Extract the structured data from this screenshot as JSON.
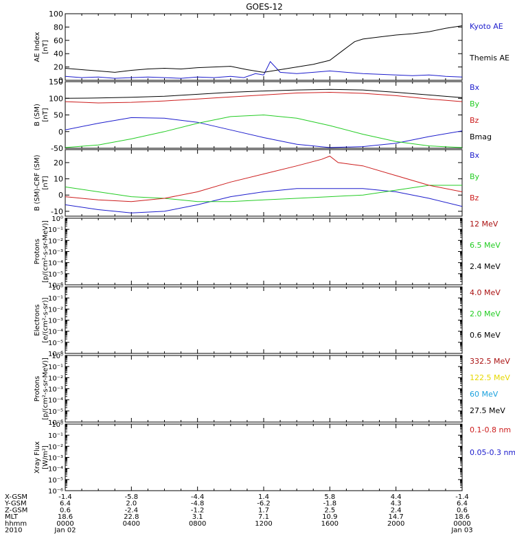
{
  "title": "GOES-12",
  "time_axis": {
    "xlim": [
      0,
      24
    ],
    "major_ticks": [
      0,
      4,
      8,
      12,
      16,
      20,
      24
    ]
  },
  "footer": {
    "rows": [
      {
        "label": "X-GSM",
        "values": [
          "-1.4",
          "-5.8",
          "-4.4",
          "1.4",
          "5.8",
          "4.4",
          "-1.4"
        ]
      },
      {
        "label": "Y-GSM",
        "values": [
          "6.4",
          "2.0",
          "-4.8",
          "-6.2",
          "-1.8",
          "4.3",
          "6.4"
        ]
      },
      {
        "label": "Z-GSM",
        "values": [
          "0.6",
          "-2.4",
          "-1.2",
          "1.7",
          "2.5",
          "2.4",
          "0.6"
        ]
      },
      {
        "label": "MLT",
        "values": [
          "18.6",
          "22.8",
          "3.1",
          "7.1",
          "10.9",
          "14.7",
          "18.6"
        ]
      },
      {
        "label": "hhmm",
        "values": [
          "0000",
          "0400",
          "0800",
          "1200",
          "1600",
          "2000",
          "0000"
        ]
      },
      {
        "label": "2010",
        "values": [
          "Jan 02",
          "",
          "",
          "",
          "",
          "",
          "Jan 03"
        ]
      }
    ]
  },
  "chart_data": [
    {
      "type": "line",
      "ylabel": [
        "AE Index",
        "[nT]"
      ],
      "ylim": [
        0,
        100
      ],
      "ytick_labels": [
        "0",
        "20",
        "40",
        "60",
        "80",
        "100"
      ],
      "series": [
        {
          "name": "Kyoto AE",
          "color": "#1a1acc",
          "x": [
            0,
            1,
            2,
            3,
            4,
            5,
            6,
            7,
            8,
            9,
            10,
            10.8,
            11.5,
            12,
            12.4,
            13,
            14,
            15,
            16,
            17,
            18,
            19,
            20,
            21,
            22,
            23,
            24
          ],
          "y": [
            6,
            4,
            5,
            3,
            4,
            5,
            4,
            3,
            5,
            4,
            6,
            4,
            10,
            8,
            28,
            12,
            10,
            12,
            14,
            12,
            10,
            9,
            8,
            7,
            8,
            6,
            5
          ]
        },
        {
          "name": "Themis AE",
          "color": "#000000",
          "x": [
            0,
            1,
            2,
            3,
            4,
            5,
            6,
            7,
            8,
            9,
            10,
            11,
            12,
            13,
            14,
            15,
            16,
            16.8,
            17.5,
            18,
            19,
            20,
            21,
            22,
            23,
            24
          ],
          "y": [
            18,
            16,
            14,
            12,
            15,
            17,
            18,
            17,
            19,
            20,
            21,
            16,
            12,
            16,
            20,
            24,
            30,
            45,
            58,
            62,
            65,
            68,
            70,
            73,
            78,
            82
          ]
        }
      ]
    },
    {
      "type": "line",
      "ylabel": [
        "B (SM)",
        "[nT]"
      ],
      "ylim": [
        -50,
        150
      ],
      "ytick_labels": [
        "-50",
        "0",
        "50",
        "100",
        "150"
      ],
      "series": [
        {
          "name": "Bx",
          "color": "#1a1acc",
          "x": [
            0,
            2,
            4,
            6,
            8,
            10,
            12,
            14,
            16,
            18,
            20,
            22,
            24
          ],
          "y": [
            5,
            25,
            42,
            40,
            28,
            5,
            -18,
            -38,
            -48,
            -45,
            -35,
            -15,
            2
          ]
        },
        {
          "name": "By",
          "color": "#22cc22",
          "x": [
            0,
            2,
            4,
            6,
            8,
            10,
            12,
            14,
            16,
            18,
            20,
            22,
            24
          ],
          "y": [
            -48,
            -40,
            -22,
            0,
            25,
            45,
            50,
            40,
            18,
            -8,
            -30,
            -43,
            -48
          ]
        },
        {
          "name": "Bz",
          "color": "#cc1a1a",
          "x": [
            0,
            2,
            4,
            6,
            8,
            10,
            12,
            14,
            16,
            18,
            20,
            22,
            24
          ],
          "y": [
            90,
            86,
            88,
            92,
            98,
            104,
            110,
            116,
            118,
            115,
            108,
            98,
            90
          ]
        },
        {
          "name": "Bmag",
          "color": "#000000",
          "x": [
            0,
            2,
            4,
            6,
            8,
            10,
            12,
            14,
            16,
            18,
            20,
            22,
            24
          ],
          "y": [
            100,
            101,
            103,
            106,
            112,
            118,
            122,
            125,
            127,
            125,
            118,
            110,
            102
          ]
        }
      ]
    },
    {
      "type": "line",
      "ylabel": [
        "B (SM)-CRF (SM)",
        "[nT]"
      ],
      "ylim": [
        -13,
        28
      ],
      "ytick_labels": [
        "-10",
        "0",
        "10",
        "20"
      ],
      "series": [
        {
          "name": "Bx",
          "color": "#1a1acc",
          "x": [
            0,
            2,
            4,
            6,
            8,
            10,
            12,
            14,
            16,
            18,
            20,
            22,
            24
          ],
          "y": [
            -6,
            -9,
            -11,
            -10,
            -6,
            -1,
            2,
            4,
            4,
            4,
            2,
            -2,
            -7
          ]
        },
        {
          "name": "By",
          "color": "#22cc22",
          "x": [
            0,
            2,
            4,
            6,
            8,
            10,
            12,
            14,
            16,
            18,
            20,
            22,
            24
          ],
          "y": [
            5,
            2,
            -1,
            -2,
            -4,
            -4,
            -3,
            -2,
            -1,
            0,
            3,
            6,
            6
          ]
        },
        {
          "name": "Bz",
          "color": "#cc1a1a",
          "x": [
            0,
            2,
            4,
            6,
            8,
            10,
            12,
            14,
            15.5,
            16,
            16.5,
            18,
            20,
            22,
            24
          ],
          "y": [
            -1,
            -3,
            -4,
            -2,
            2,
            8,
            13,
            18,
            22,
            24,
            20,
            18,
            12,
            6,
            2
          ]
        }
      ]
    },
    {
      "type": "line",
      "ylabel": [
        "Protons",
        "[p/(cm²-s-sr-MeV)]"
      ],
      "yscale": "log",
      "ylim": [
        -6,
        0
      ],
      "ytick_labels": [
        "10⁰",
        "10⁻¹",
        "10⁻²",
        "10⁻³",
        "10⁻⁴",
        "10⁻⁵",
        "10⁻⁶"
      ],
      "series": [
        {
          "name": "12 MeV",
          "color": "#aa1111",
          "values": []
        },
        {
          "name": "6.5 MeV",
          "color": "#22cc22",
          "values": []
        },
        {
          "name": "2.4 MeV",
          "color": "#000000",
          "values": []
        }
      ]
    },
    {
      "type": "line",
      "ylabel": [
        "Electrons",
        "[e/(cm²-s-sr)]"
      ],
      "yscale": "log",
      "ylim": [
        -6,
        0
      ],
      "ytick_labels": [
        "10⁰",
        "10⁻¹",
        "10⁻²",
        "10⁻³",
        "10⁻⁴",
        "10⁻⁵",
        "10⁻⁶"
      ],
      "series": [
        {
          "name": "4.0 MeV",
          "color": "#aa1111",
          "values": []
        },
        {
          "name": "2.0 MeV",
          "color": "#22cc22",
          "values": []
        },
        {
          "name": "0.6 MeV",
          "color": "#000000",
          "values": []
        }
      ]
    },
    {
      "type": "line",
      "ylabel": [
        "Protons",
        "[p/(cm²-s-sr-MeV)]"
      ],
      "yscale": "log",
      "ylim": [
        -6,
        0
      ],
      "ytick_labels": [
        "10⁰",
        "10⁻¹",
        "10⁻²",
        "10⁻³",
        "10⁻⁴",
        "10⁻⁵",
        "10⁻⁶"
      ],
      "series": [
        {
          "name": "332.5 MeV",
          "color": "#aa1111",
          "values": []
        },
        {
          "name": "122.5 MeV",
          "color": "#e6d800",
          "values": []
        },
        {
          "name": "60 MeV",
          "color": "#1aa0dd",
          "values": []
        },
        {
          "name": "27.5 MeV",
          "color": "#000000",
          "values": []
        }
      ]
    },
    {
      "type": "line",
      "ylabel": [
        "Xray  Flux",
        "[W/m²]"
      ],
      "yscale": "log",
      "ylim": [
        -6,
        0
      ],
      "ytick_labels": [
        "10⁰",
        "10⁻¹",
        "10⁻²",
        "10⁻³",
        "10⁻⁴",
        "10⁻⁵",
        "10⁻⁶"
      ],
      "series": [
        {
          "name": "0.1-0.8 nm",
          "color": "#cc1a1a",
          "values": []
        },
        {
          "name": "0.05-0.3 nm",
          "color": "#1a1acc",
          "values": []
        }
      ]
    }
  ]
}
